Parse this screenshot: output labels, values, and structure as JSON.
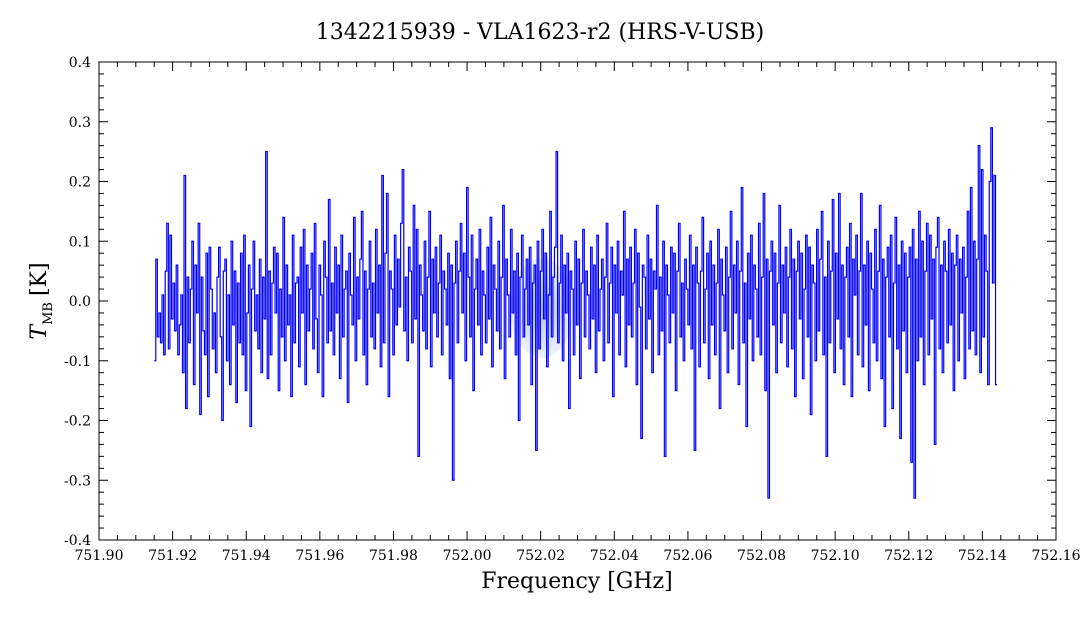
{
  "chart_data": {
    "type": "line",
    "title": "1342215939 - VLA1623-r2 (HRS-V-USB)",
    "xlabel": "Frequency [GHz]",
    "ylabel_main": "T",
    "ylabel_sub": "MB",
    "ylabel_unit": "[K]",
    "xlim": [
      751.9,
      752.16
    ],
    "ylim": [
      -0.4,
      0.4
    ],
    "x_ticks": [
      "751.90",
      "751.92",
      "751.94",
      "751.96",
      "751.98",
      "752.00",
      "752.02",
      "752.04",
      "752.06",
      "752.08",
      "752.10",
      "752.12",
      "752.14",
      "752.16"
    ],
    "y_ticks": [
      "0.4",
      "0.3",
      "0.2",
      "0.1",
      "0.0",
      "-0.1",
      "-0.2",
      "-0.3",
      "-0.4"
    ],
    "grid": false,
    "series_color": "#0000ff",
    "x_start": 751.915,
    "x_end": 752.144,
    "series": [
      {
        "values": [
          -0.1,
          0.07,
          -0.06,
          -0.02,
          -0.07,
          0.01,
          -0.09,
          0.05,
          0.13,
          -0.08,
          0.11,
          -0.03,
          0.03,
          -0.05,
          0.06,
          -0.09,
          -0.04,
          0.01,
          -0.12,
          0.21,
          -0.18,
          0.04,
          -0.07,
          0.02,
          0.1,
          -0.14,
          0.06,
          -0.02,
          0.13,
          -0.19,
          0.04,
          -0.05,
          -0.09,
          0.08,
          -0.16,
          0.09,
          0.02,
          -0.08,
          -0.02,
          -0.12,
          0.04,
          0.09,
          -0.06,
          -0.2,
          0.05,
          0.07,
          -0.1,
          0.01,
          -0.14,
          0.1,
          -0.04,
          0.05,
          -0.17,
          0.03,
          -0.07,
          0.08,
          -0.09,
          0.11,
          -0.15,
          -0.02,
          0.06,
          -0.21,
          0.02,
          0.1,
          -0.05,
          0.01,
          -0.08,
          0.07,
          -0.12,
          0.04,
          -0.03,
          0.25,
          -0.13,
          0.05,
          -0.09,
          0.03,
          0.09,
          -0.02,
          0.08,
          -0.15,
          0.02,
          -0.06,
          0.14,
          -0.1,
          0.06,
          -0.04,
          0.01,
          -0.16,
          0.11,
          -0.07,
          0.03,
          0.04,
          -0.11,
          0.09,
          -0.02,
          0.12,
          -0.14,
          0.06,
          -0.05,
          0.02,
          0.08,
          -0.08,
          0.13,
          -0.03,
          -0.12,
          0.06,
          0.01,
          -0.16,
          0.1,
          0.04,
          -0.07,
          0.17,
          -0.05,
          0.03,
          -0.09,
          0.09,
          -0.02,
          0.06,
          -0.13,
          0.11,
          -0.06,
          0.02,
          0.05,
          -0.17,
          0.08,
          0.01,
          -0.04,
          0.14,
          -0.1,
          0.04,
          -0.03,
          0.07,
          0.15,
          -0.09,
          0.05,
          -0.14,
          0.02,
          0.1,
          -0.06,
          0.03,
          -0.08,
          0.12,
          -0.02,
          0.06,
          -0.11,
          0.21,
          -0.07,
          0.08,
          0.18,
          -0.16,
          0.05,
          0.02,
          -0.09,
          0.11,
          -0.04,
          0.07,
          -0.01,
          0.13,
          0.22,
          -0.05,
          0.04,
          -0.1,
          0.09,
          0.05,
          -0.07,
          0.16,
          -0.03,
          0.12,
          -0.26,
          0.06,
          0.01,
          -0.05,
          0.1,
          -0.08,
          0.04,
          0.15,
          -0.11,
          0.07,
          -0.02,
          0.09,
          -0.06,
          0.03,
          0.11,
          -0.09,
          0.05,
          0.02,
          -0.04,
          0.08,
          -0.13,
          0.06,
          -0.3,
          0.03,
          0.1,
          -0.07,
          0.05,
          0.13,
          -0.02,
          0.08,
          -0.1,
          0.19,
          0.04,
          -0.06,
          0.11,
          -0.15,
          0.02,
          0.07,
          -0.04,
          0.12,
          -0.09,
          0.05,
          0.01,
          -0.07,
          0.09,
          -0.03,
          0.14,
          -0.11,
          0.06,
          0.02,
          -0.05,
          0.1,
          -0.08,
          0.04,
          0.16,
          -0.13,
          0.07,
          0.01,
          -0.06,
          0.12,
          -0.02,
          0.05,
          -0.09,
          0.08,
          -0.2,
          0.04,
          0.11,
          -0.06,
          0.02,
          0.07,
          -0.04,
          0.09,
          -0.14,
          0.03,
          0.06,
          -0.25,
          0.1,
          -0.08,
          0.05,
          0.12,
          -0.03,
          0.08,
          -0.11,
          0.01,
          0.15,
          -0.06,
          0.04,
          0.09,
          0.25,
          -0.07,
          0.03,
          0.11,
          -0.1,
          0.06,
          -0.02,
          0.08,
          -0.18,
          0.05,
          0.02,
          -0.09,
          0.1,
          -0.04,
          0.07,
          -0.13,
          0.03,
          0.12,
          -0.06,
          0.05,
          0.01,
          -0.08,
          0.09,
          -0.03,
          0.06,
          -0.12,
          0.11,
          -0.05,
          0.02,
          0.07,
          -0.1,
          0.04,
          0.13,
          -0.07,
          0.03,
          0.09,
          -0.16,
          0.06,
          -0.02,
          0.1,
          -0.09,
          0.05,
          0.01,
          0.15,
          -0.11,
          0.07,
          -0.04,
          0.09,
          -0.06,
          0.03,
          0.12,
          -0.14,
          0.08,
          -0.01,
          -0.23,
          0.06,
          0.04,
          -0.08,
          0.11,
          -0.03,
          0.07,
          -0.12,
          0.05,
          0.02,
          0.16,
          -0.09,
          0.04,
          -0.05,
          0.1,
          -0.26,
          0.06,
          0.01,
          -0.07,
          0.09,
          -0.02,
          0.08,
          -0.15,
          0.05,
          0.13,
          -0.06,
          0.03,
          -0.1,
          0.07,
          0.02,
          -0.04,
          0.11,
          -0.08,
          0.06,
          -0.25,
          0.09,
          0.03,
          -0.11,
          0.05,
          0.14,
          -0.07,
          0.02,
          0.08,
          -0.13,
          0.1,
          -0.04,
          0.06,
          -0.09,
          0.03,
          0.12,
          -0.18,
          0.07,
          0.01,
          -0.05,
          0.09,
          -0.12,
          0.04,
          0.15,
          -0.08,
          0.06,
          -0.02,
          0.1,
          -0.14,
          0.05,
          0.19,
          -0.07,
          0.03,
          -0.21,
          0.08,
          -0.03,
          0.11,
          -0.1,
          0.06,
          0.02,
          -0.06,
          0.13,
          -0.09,
          0.04,
          0.18,
          -0.15,
          0.07,
          -0.33,
          0.05,
          0.1,
          -0.04,
          0.08,
          -0.12,
          0.03,
          0.16,
          -0.07,
          0.06,
          -0.02,
          0.09,
          -0.11,
          0.04,
          0.12,
          -0.08,
          0.07,
          -0.16,
          0.05,
          0.1,
          -0.03,
          0.08,
          -0.13,
          0.02,
          0.11,
          -0.06,
          0.09,
          -0.19,
          0.06,
          0.03,
          -0.1,
          0.12,
          -0.05,
          0.07,
          0.15,
          -0.09,
          0.04,
          -0.26,
          0.1,
          -0.07,
          0.05,
          0.17,
          -0.12,
          0.08,
          -0.03,
          0.18,
          -0.08,
          0.06,
          -0.14,
          0.04,
          0.09,
          -0.06,
          0.13,
          -0.16,
          0.07,
          0.01,
          0.11,
          -0.09,
          0.05,
          0.18,
          -0.11,
          0.06,
          -0.04,
          0.1,
          -0.15,
          0.08,
          0.02,
          -0.07,
          0.12,
          -0.1,
          0.05,
          0.16,
          -0.13,
          0.07,
          -0.21,
          0.04,
          0.09,
          -0.06,
          0.11,
          -0.18,
          0.03,
          0.14,
          -0.08,
          0.06,
          -0.23,
          0.1,
          -0.05,
          0.08,
          -0.12,
          0.04,
          0.09,
          -0.27,
          0.12,
          -0.33,
          0.07,
          -0.1,
          0.15,
          -0.06,
          0.1,
          -0.14,
          0.05,
          0.13,
          -0.09,
          0.11,
          -0.03,
          0.07,
          -0.24,
          0.09,
          0.14,
          -0.08,
          0.06,
          -0.12,
          0.1,
          0.05,
          -0.07,
          0.12,
          -0.04,
          0.08,
          -0.15,
          0.06,
          0.11,
          -0.1,
          0.07,
          -0.02,
          0.09,
          -0.13,
          0.04,
          0.15,
          -0.08,
          0.19,
          -0.05,
          0.1,
          -0.09,
          0.07,
          0.26,
          -0.12,
          0.22,
          -0.06,
          0.11,
          0.05,
          -0.14,
          0.2,
          0.29,
          0.03,
          0.21,
          -0.14
        ]
      }
    ]
  }
}
